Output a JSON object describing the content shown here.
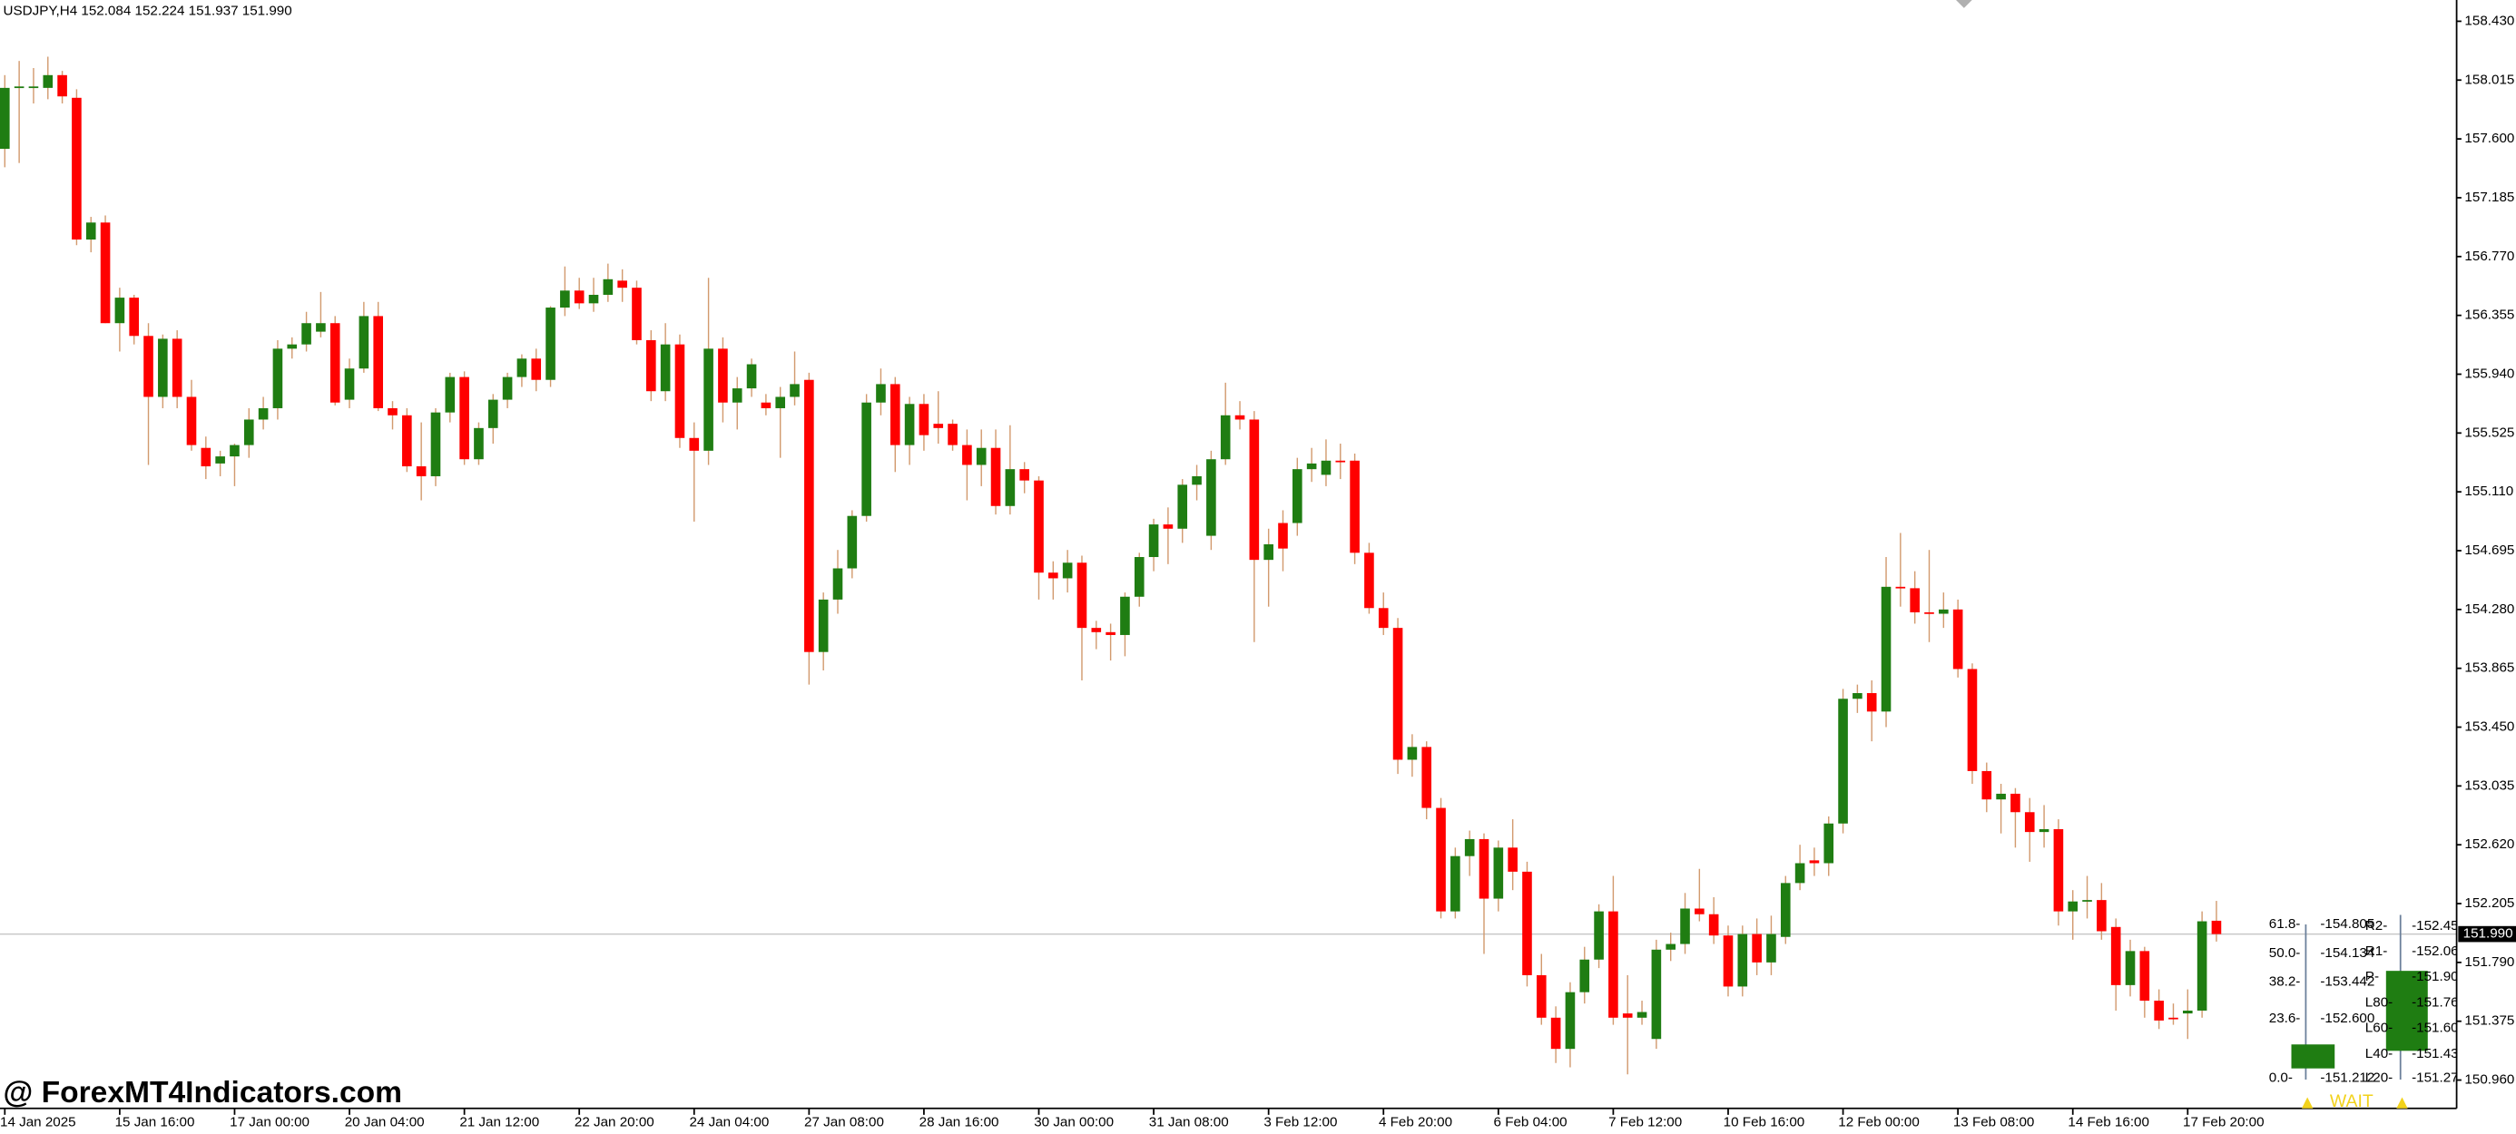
{
  "chart_data": {
    "type": "candlestick",
    "title": "USDJPY,H4  152.084 152.224 151.937 151.990",
    "up_color": "#1f7d12",
    "down_color": "#ff0000",
    "wick_color": "#d29a6e",
    "categories": [
      "14 Jan 2025",
      null,
      null,
      null,
      null,
      null,
      null,
      null,
      "15 Jan 16:00",
      null,
      null,
      null,
      null,
      null,
      null,
      null,
      "17 Jan 00:00",
      null,
      null,
      null,
      null,
      null,
      null,
      null,
      "20 Jan 04:00",
      null,
      null,
      null,
      null,
      null,
      null,
      null,
      "21 Jan 12:00",
      null,
      null,
      null,
      null,
      null,
      null,
      null,
      "22 Jan 20:00",
      null,
      null,
      null,
      null,
      null,
      null,
      null,
      "24 Jan 04:00",
      null,
      null,
      null,
      null,
      null,
      null,
      null,
      "27 Jan 08:00",
      null,
      null,
      null,
      null,
      null,
      null,
      null,
      "28 Jan 16:00",
      null,
      null,
      null,
      null,
      null,
      null,
      null,
      "30 Jan 00:00",
      null,
      null,
      null,
      null,
      null,
      null,
      null,
      "31 Jan 08:00",
      null,
      null,
      null,
      null,
      null,
      null,
      null,
      "3 Feb 12:00",
      null,
      null,
      null,
      null,
      null,
      null,
      null,
      "4 Feb 20:00",
      null,
      null,
      null,
      null,
      null,
      null,
      null,
      "6 Feb 04:00",
      null,
      null,
      null,
      null,
      null,
      null,
      null,
      "7 Feb 12:00",
      null,
      null,
      null,
      null,
      null,
      null,
      null,
      "10 Feb 16:00",
      null,
      null,
      null,
      null,
      null,
      null,
      null,
      "12 Feb 00:00",
      null,
      null,
      null,
      null,
      null,
      null,
      null,
      "13 Feb 08:00",
      null,
      null,
      null,
      null,
      null,
      null,
      null,
      "14 Feb 16:00",
      null,
      null,
      null,
      null,
      null,
      null,
      null,
      "17 Feb 20:00",
      null,
      null
    ],
    "open": [
      157.53,
      157.96,
      157.96,
      157.96,
      158.05,
      157.89,
      156.89,
      157.01,
      156.3,
      156.48,
      156.21,
      155.78,
      156.19,
      155.78,
      155.42,
      155.31,
      155.36,
      155.44,
      155.62,
      155.7,
      156.12,
      156.15,
      156.24,
      156.3,
      155.76,
      155.98,
      156.35,
      155.7,
      155.65,
      155.29,
      155.22,
      155.67,
      155.92,
      155.34,
      155.56,
      155.76,
      155.92,
      156.05,
      155.9,
      156.41,
      156.53,
      156.44,
      156.5,
      156.6,
      156.55,
      156.18,
      155.82,
      156.15,
      155.49,
      155.4,
      156.12,
      155.74,
      155.84,
      155.74,
      155.7,
      155.78,
      155.9,
      153.98,
      154.35,
      154.57,
      154.94,
      155.74,
      155.87,
      155.44,
      155.73,
      155.59,
      155.59,
      155.44,
      155.3,
      155.42,
      155.01,
      155.27,
      155.19,
      154.54,
      154.5,
      154.61,
      154.15,
      154.12,
      154.1,
      154.37,
      154.65,
      154.88,
      154.85,
      155.16,
      154.8,
      155.34,
      155.65,
      155.62,
      154.63,
      154.89,
      154.89,
      155.27,
      155.23,
      155.33,
      155.33,
      154.68,
      154.29,
      154.15,
      153.22,
      153.31,
      152.88,
      152.15,
      152.54,
      152.66,
      152.24,
      152.6,
      152.43,
      151.7,
      151.4,
      151.18,
      151.58,
      151.81,
      152.15,
      151.43,
      151.4,
      151.25,
      151.88,
      151.92,
      152.17,
      152.13,
      151.98,
      151.62,
      151.99,
      151.79,
      151.97,
      152.35,
      152.51,
      152.49,
      152.77,
      153.65,
      153.69,
      153.56,
      154.44,
      154.43,
      154.26,
      154.25,
      154.28,
      153.86,
      153.14,
      152.94,
      152.98,
      152.85,
      152.71,
      152.73,
      152.15,
      152.22,
      152.23,
      152.04,
      151.63,
      151.87,
      151.52,
      151.4,
      151.43,
      151.45,
      152.084
    ],
    "high": [
      158.05,
      158.15,
      158.1,
      158.18,
      158.08,
      157.95,
      157.05,
      157.06,
      156.55,
      156.5,
      156.3,
      156.22,
      156.25,
      155.9,
      155.5,
      155.4,
      155.45,
      155.7,
      155.78,
      156.18,
      156.2,
      156.38,
      156.52,
      156.35,
      156.05,
      156.45,
      156.45,
      155.75,
      155.7,
      155.6,
      155.7,
      155.95,
      155.96,
      155.6,
      155.8,
      155.95,
      156.08,
      156.12,
      156.42,
      156.7,
      156.62,
      156.62,
      156.72,
      156.68,
      156.6,
      156.25,
      156.3,
      156.22,
      155.6,
      156.62,
      156.2,
      155.92,
      156.05,
      155.8,
      155.85,
      156.1,
      155.95,
      154.4,
      154.7,
      154.98,
      155.8,
      155.98,
      155.92,
      155.78,
      155.8,
      155.82,
      155.62,
      155.55,
      155.55,
      155.55,
      155.58,
      155.32,
      155.22,
      154.62,
      154.7,
      154.66,
      154.2,
      154.18,
      154.4,
      154.68,
      154.92,
      155.0,
      155.2,
      155.3,
      155.4,
      155.88,
      155.75,
      155.68,
      154.85,
      154.98,
      155.35,
      155.42,
      155.48,
      155.45,
      155.38,
      154.75,
      154.4,
      154.22,
      153.4,
      153.35,
      152.95,
      152.6,
      152.72,
      152.7,
      152.65,
      152.8,
      152.5,
      151.85,
      151.48,
      151.65,
      151.9,
      152.2,
      152.4,
      151.7,
      151.52,
      151.95,
      152.0,
      152.28,
      152.45,
      152.25,
      152.05,
      152.05,
      152.1,
      152.12,
      152.4,
      152.62,
      152.6,
      152.82,
      153.72,
      153.75,
      153.78,
      154.65,
      154.82,
      154.55,
      154.7,
      154.4,
      154.35,
      153.9,
      153.2,
      153.05,
      153.02,
      152.95,
      152.9,
      152.8,
      152.3,
      152.4,
      152.35,
      152.1,
      151.95,
      151.9,
      151.6,
      151.5,
      151.6,
      152.15,
      152.224
    ],
    "low": [
      157.4,
      157.43,
      157.85,
      157.88,
      157.85,
      156.85,
      156.8,
      156.3,
      156.1,
      156.15,
      155.3,
      155.7,
      155.7,
      155.4,
      155.2,
      155.22,
      155.15,
      155.35,
      155.55,
      155.62,
      156.05,
      156.1,
      156.2,
      155.72,
      155.7,
      155.95,
      155.68,
      155.55,
      155.25,
      155.05,
      155.15,
      155.6,
      155.3,
      155.3,
      155.45,
      155.7,
      155.85,
      155.82,
      155.85,
      156.35,
      156.4,
      156.38,
      156.45,
      156.45,
      156.15,
      155.75,
      155.75,
      155.42,
      154.9,
      155.3,
      155.6,
      155.55,
      155.78,
      155.65,
      155.35,
      155.72,
      153.75,
      153.85,
      154.25,
      154.5,
      154.9,
      155.65,
      155.25,
      155.3,
      155.4,
      155.45,
      155.4,
      155.05,
      155.15,
      154.95,
      154.95,
      155.1,
      154.35,
      154.35,
      154.4,
      153.78,
      154.0,
      153.92,
      153.95,
      154.3,
      154.55,
      154.6,
      154.75,
      155.05,
      154.7,
      155.3,
      155.55,
      154.05,
      154.3,
      154.55,
      154.8,
      155.18,
      155.15,
      155.2,
      154.6,
      154.25,
      154.1,
      153.12,
      153.1,
      152.8,
      152.1,
      152.1,
      152.4,
      151.85,
      152.15,
      152.3,
      151.62,
      151.35,
      151.08,
      151.05,
      151.5,
      151.75,
      151.35,
      151.0,
      151.35,
      151.18,
      151.8,
      151.85,
      152.08,
      151.92,
      151.55,
      151.55,
      151.7,
      151.7,
      151.92,
      152.3,
      152.4,
      152.4,
      152.7,
      153.55,
      153.35,
      153.45,
      154.3,
      154.18,
      154.05,
      154.15,
      153.8,
      153.05,
      152.85,
      152.7,
      152.6,
      152.5,
      152.6,
      152.05,
      151.95,
      152.1,
      151.95,
      151.45,
      151.55,
      151.4,
      151.32,
      151.35,
      151.25,
      151.4,
      151.937
    ],
    "close": [
      157.96,
      157.97,
      157.97,
      158.05,
      157.9,
      156.89,
      157.01,
      156.3,
      156.48,
      156.21,
      155.78,
      156.19,
      155.78,
      155.44,
      155.29,
      155.36,
      155.44,
      155.62,
      155.7,
      156.12,
      156.15,
      156.3,
      156.3,
      155.74,
      155.98,
      156.35,
      155.7,
      155.65,
      155.29,
      155.22,
      155.67,
      155.92,
      155.34,
      155.56,
      155.76,
      155.92,
      156.05,
      155.9,
      156.41,
      156.53,
      156.44,
      156.5,
      156.61,
      156.55,
      156.18,
      155.82,
      156.15,
      155.49,
      155.4,
      156.12,
      155.74,
      155.84,
      156.01,
      155.7,
      155.78,
      155.87,
      153.98,
      154.35,
      154.57,
      154.94,
      155.74,
      155.87,
      155.44,
      155.73,
      155.51,
      155.56,
      155.44,
      155.3,
      155.42,
      155.01,
      155.27,
      155.19,
      154.54,
      154.5,
      154.61,
      154.15,
      154.12,
      154.1,
      154.37,
      154.65,
      154.88,
      154.85,
      155.16,
      155.22,
      155.34,
      155.65,
      155.62,
      154.63,
      154.74,
      154.71,
      155.27,
      155.31,
      155.33,
      155.32,
      154.68,
      154.29,
      154.15,
      153.22,
      153.31,
      152.88,
      152.15,
      152.54,
      152.66,
      152.24,
      152.6,
      152.43,
      151.7,
      151.4,
      151.18,
      151.58,
      151.81,
      152.15,
      151.4,
      151.4,
      151.44,
      151.88,
      151.92,
      152.17,
      152.13,
      151.98,
      151.62,
      151.99,
      151.79,
      151.99,
      152.35,
      152.49,
      152.49,
      152.77,
      153.65,
      153.69,
      153.56,
      154.44,
      154.43,
      154.26,
      154.25,
      154.28,
      153.86,
      153.14,
      152.94,
      152.98,
      152.85,
      152.71,
      152.73,
      152.15,
      152.22,
      152.23,
      152.01,
      151.63,
      151.87,
      151.52,
      151.38,
      151.39,
      151.45,
      152.08,
      151.99
    ],
    "ylim": [
      150.76,
      158.58
    ],
    "yticks": [
      {
        "value": 158.43,
        "label": "158.430"
      },
      {
        "value": 158.015,
        "label": "158.015"
      },
      {
        "value": 157.6,
        "label": "157.600"
      },
      {
        "value": 157.185,
        "label": "157.185"
      },
      {
        "value": 156.77,
        "label": "156.770"
      },
      {
        "value": 156.355,
        "label": "156.355"
      },
      {
        "value": 155.94,
        "label": "155.940"
      },
      {
        "value": 155.525,
        "label": "155.525"
      },
      {
        "value": 155.11,
        "label": "155.110"
      },
      {
        "value": 154.695,
        "label": "154.695"
      },
      {
        "value": 154.28,
        "label": "154.280"
      },
      {
        "value": 153.865,
        "label": "153.865"
      },
      {
        "value": 153.45,
        "label": "153.450"
      },
      {
        "value": 153.035,
        "label": "153.035"
      },
      {
        "value": 152.62,
        "label": "152.620"
      },
      {
        "value": 152.205,
        "label": "152.205"
      },
      {
        "value": 151.79,
        "label": "151.790"
      },
      {
        "value": 151.375,
        "label": "151.375"
      },
      {
        "value": 150.96,
        "label": "150.960"
      }
    ],
    "last_price": {
      "value": 151.99,
      "label": "151.990"
    },
    "grid": false
  },
  "watermark": "@ ForexMT4Indicators.com",
  "indicator": {
    "fib_levels": [
      "61.8-",
      "50.0-",
      "38.2-",
      "23.6-",
      "0.0-"
    ],
    "fib_prices": [
      "-154.805",
      "-154.134",
      "-153.442",
      "-152.600",
      "-151.212"
    ],
    "pivot_labels": [
      "R2-",
      "R1-",
      "P-",
      "L80-",
      "L60-",
      "L40-",
      "L20-"
    ],
    "pivot_prices": [
      "-152.45",
      "-152.06",
      "-151.90",
      "-151.76",
      "-151.60",
      "-151.43",
      "-151.27"
    ],
    "signal": "WAIT"
  }
}
